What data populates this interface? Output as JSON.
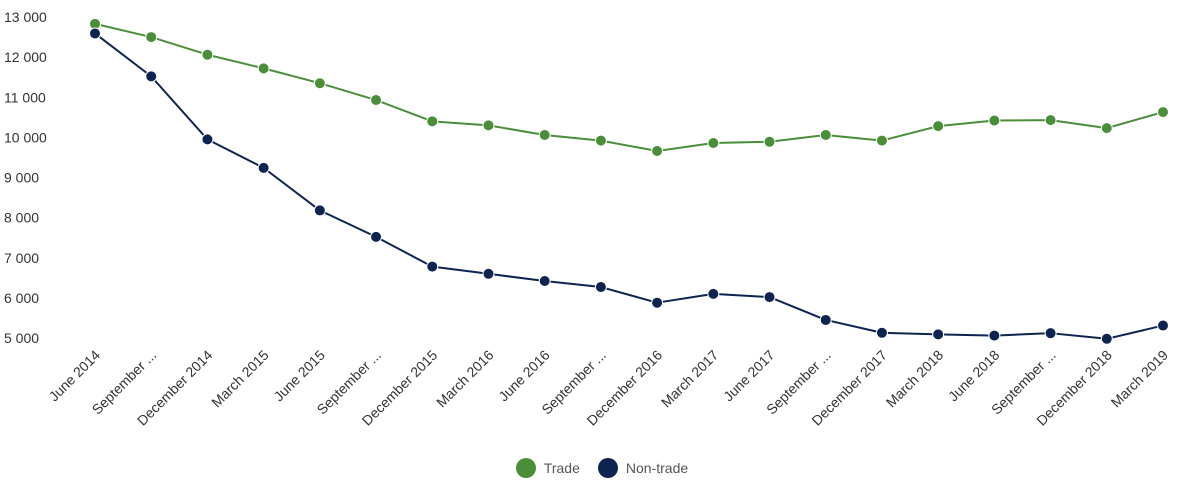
{
  "chart_data": {
    "type": "line",
    "title": "",
    "xlabel": "",
    "ylabel": "",
    "categories": [
      "June 2014",
      "September ...",
      "December 2014",
      "March 2015",
      "June 2015",
      "September ...",
      "December 2015",
      "March 2016",
      "June 2016",
      "September ...",
      "December 2016",
      "March 2017",
      "June 2017",
      "September ...",
      "December 2017",
      "March 2018",
      "June 2018",
      "September ...",
      "December 2018",
      "March 2019"
    ],
    "ylim": [
      4700,
      13000
    ],
    "yticks": [
      5000,
      6000,
      7000,
      8000,
      9000,
      10000,
      11000,
      12000,
      13000
    ],
    "ytick_labels": [
      "5 000",
      "6 000",
      "7 000",
      "8 000",
      "9 000",
      "10 000",
      "11 000",
      "12 000",
      "13 000"
    ],
    "grid": false,
    "legend_position": "bottom",
    "series": [
      {
        "name": "Trade",
        "color": "#4a8e3a",
        "values": [
          12830,
          12500,
          12060,
          11720,
          11350,
          10930,
          10400,
          10300,
          10060,
          9920,
          9660,
          9860,
          9890,
          10060,
          9920,
          10280,
          10420,
          10430,
          10230,
          10630
        ]
      },
      {
        "name": "Non-trade",
        "color": "#0d2350",
        "values": [
          12590,
          11520,
          9950,
          9240,
          8180,
          7520,
          6780,
          6600,
          6420,
          6270,
          5880,
          6100,
          6020,
          5450,
          5130,
          5090,
          5060,
          5120,
          4980,
          5310
        ]
      }
    ]
  }
}
